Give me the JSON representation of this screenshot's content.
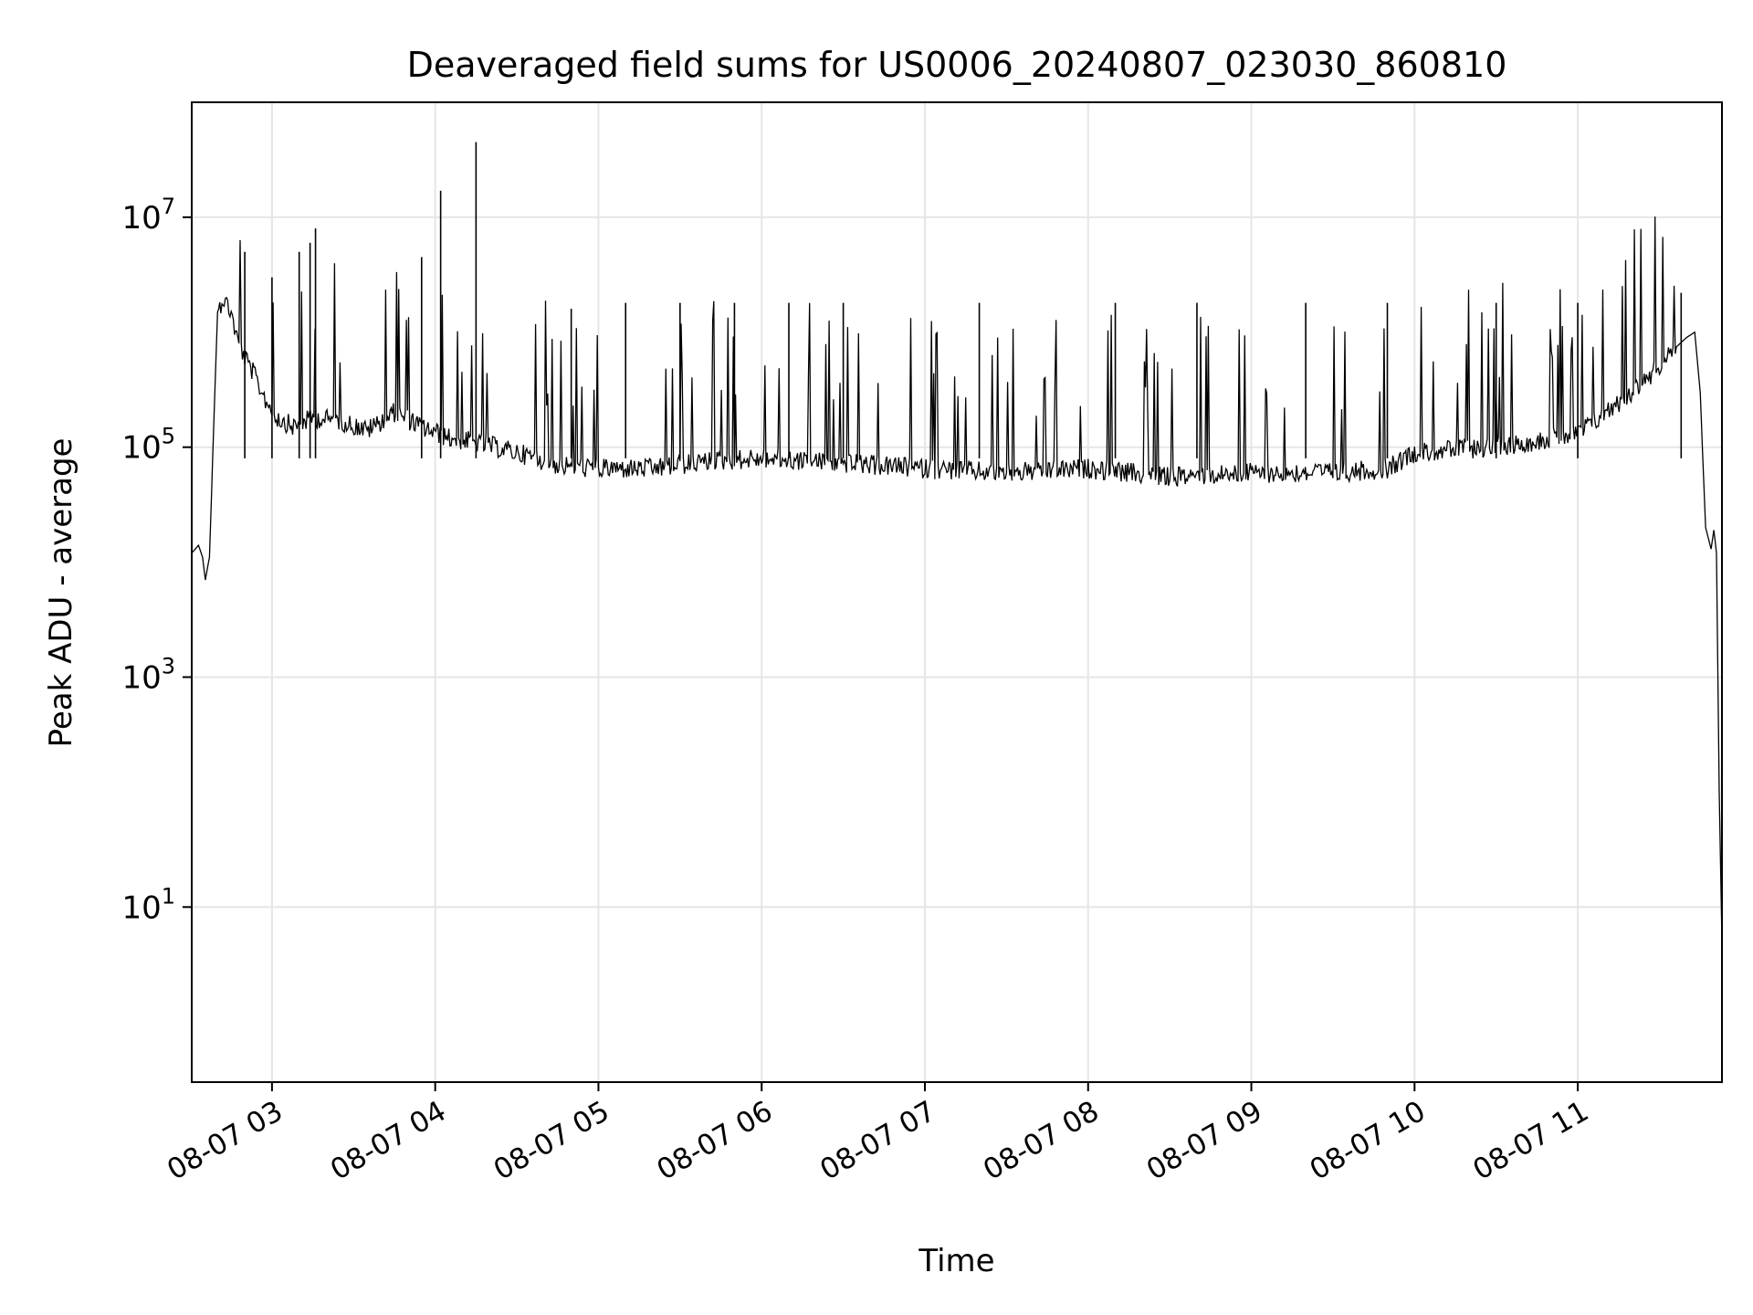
{
  "chart_data": {
    "type": "line",
    "title": "Deaveraged field sums for US0006_20240807_023030_860810",
    "xlabel": "Time",
    "ylabel": "Peak ADU - average",
    "yscale": "log",
    "ylim": [
      0.3,
      100000000
    ],
    "xlim": [
      "2024-08-07 02:30:30",
      "2024-08-07 11:53:00"
    ],
    "x_ticks": [
      {
        "value": "2024-08-07 03:00",
        "label": "08-07 03"
      },
      {
        "value": "2024-08-07 04:00",
        "label": "08-07 04"
      },
      {
        "value": "2024-08-07 05:00",
        "label": "08-07 05"
      },
      {
        "value": "2024-08-07 06:00",
        "label": "08-07 06"
      },
      {
        "value": "2024-08-07 07:00",
        "label": "08-07 07"
      },
      {
        "value": "2024-08-07 08:00",
        "label": "08-07 08"
      },
      {
        "value": "2024-08-07 09:00",
        "label": "08-07 09"
      },
      {
        "value": "2024-08-07 10:00",
        "label": "08-07 10"
      },
      {
        "value": "2024-08-07 11:00",
        "label": "08-07 11"
      }
    ],
    "y_ticks": [
      {
        "value": 10,
        "base": "10",
        "exp": "1"
      },
      {
        "value": 1000,
        "base": "10",
        "exp": "3"
      },
      {
        "value": 100000,
        "base": "10",
        "exp": "5"
      },
      {
        "value": 10000000,
        "base": "10",
        "exp": "7"
      }
    ],
    "grid": true,
    "legend": "none",
    "line_color": "#000000",
    "grid_color": "#e6e6e6",
    "series": [
      {
        "x": [
          "2024-08-07 02:30:30",
          "2024-08-07 02:33:00",
          "2024-08-07 02:34:30",
          "2024-08-07 02:35:30",
          "2024-08-07 02:37:00",
          "2024-08-07 02:39:00",
          "2024-08-07 02:40:00",
          "2024-08-07 02:42:00",
          "2024-08-07 02:45:00",
          "2024-08-07 02:47:00",
          "2024-08-07 02:50:00",
          "2024-08-07 02:53:00",
          "2024-08-07 02:55:00",
          "2024-08-07 02:58:00",
          "2024-08-07 03:02:00",
          "2024-08-07 03:08:00",
          "2024-08-07 03:15:00",
          "2024-08-07 03:25:00",
          "2024-08-07 03:35:00",
          "2024-08-07 03:45:00",
          "2024-08-07 03:55:00",
          "2024-08-07 04:05:00",
          "2024-08-07 04:15:00",
          "2024-08-07 04:30:00",
          "2024-08-07 04:45:00",
          "2024-08-07 05:00:00",
          "2024-08-07 05:20:00",
          "2024-08-07 05:40:00",
          "2024-08-07 06:00:00",
          "2024-08-07 06:20:00",
          "2024-08-07 06:40:00",
          "2024-08-07 07:00:00",
          "2024-08-07 07:30:00",
          "2024-08-07 08:00:00",
          "2024-08-07 08:30:00",
          "2024-08-07 09:00:00",
          "2024-08-07 09:30:00",
          "2024-08-07 09:50:00",
          "2024-08-07 10:00:00",
          "2024-08-07 10:30:00",
          "2024-08-07 11:00:00",
          "2024-08-07 11:20:00",
          "2024-08-07 11:30:00",
          "2024-08-07 11:35:00",
          "2024-08-07 11:40:00",
          "2024-08-07 11:43:00",
          "2024-08-07 11:45:00",
          "2024-08-07 11:47:00",
          "2024-08-07 11:49:00",
          "2024-08-07 11:50:00",
          "2024-08-07 11:51:00",
          "2024-08-07 11:52:00",
          "2024-08-07 11:53:00"
        ],
        "y": [
          12000,
          14000,
          11000,
          7000,
          11000,
          300000,
          1500000,
          2000000,
          1500000,
          900000,
          600000,
          450000,
          350000,
          250000,
          180000,
          150000,
          180000,
          170000,
          140000,
          200000,
          150000,
          120000,
          110000,
          90000,
          70000,
          65000,
          65000,
          75000,
          80000,
          75000,
          70000,
          65000,
          60000,
          65000,
          55000,
          60000,
          60000,
          65000,
          90000,
          100000,
          130000,
          300000,
          500000,
          700000,
          900000,
          1000000,
          300000,
          20000,
          13000,
          19000,
          12000,
          100,
          5
        ],
        "spikes": [
          {
            "x": "2024-08-07 02:50:00",
            "y": 5000000
          },
          {
            "x": "2024-08-07 03:00:00",
            "y": 3000000
          },
          {
            "x": "2024-08-07 03:10:00",
            "y": 5000000
          },
          {
            "x": "2024-08-07 03:14:00",
            "y": 6000000
          },
          {
            "x": "2024-08-07 03:16:00",
            "y": 8000000
          },
          {
            "x": "2024-08-07 03:55:00",
            "y": 4500000
          },
          {
            "x": "2024-08-07 04:02:00",
            "y": 17000000
          },
          {
            "x": "2024-08-07 04:15:00",
            "y": 45000000
          },
          {
            "x": "2024-08-07 04:50:00",
            "y": 1600000
          },
          {
            "x": "2024-08-07 05:10:00",
            "y": 1800000
          },
          {
            "x": "2024-08-07 05:30:00",
            "y": 1800000
          },
          {
            "x": "2024-08-07 05:50:00",
            "y": 1800000
          },
          {
            "x": "2024-08-07 06:10:00",
            "y": 1800000
          },
          {
            "x": "2024-08-07 06:30:00",
            "y": 1800000
          },
          {
            "x": "2024-08-07 07:20:00",
            "y": 1800000
          },
          {
            "x": "2024-08-07 08:10:00",
            "y": 1800000
          },
          {
            "x": "2024-08-07 08:40:00",
            "y": 1800000
          },
          {
            "x": "2024-08-07 09:20:00",
            "y": 1800000
          },
          {
            "x": "2024-08-07 09:50:00",
            "y": 1800000
          },
          {
            "x": "2024-08-07 10:30:00",
            "y": 1800000
          },
          {
            "x": "2024-08-07 11:00:00",
            "y": 1800000
          },
          {
            "x": "2024-08-07 11:38:00",
            "y": 2200000
          }
        ]
      }
    ]
  }
}
